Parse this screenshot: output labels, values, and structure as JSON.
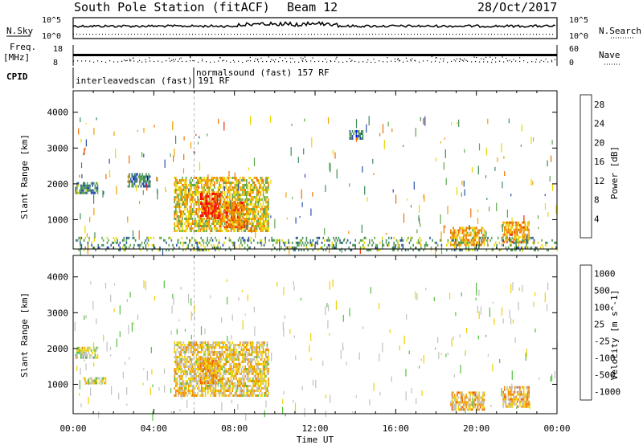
{
  "header": {
    "station": "South Pole Station (fitACF)",
    "beam": "Beam 12",
    "date": "28/Oct/2017"
  },
  "strip_labels": {
    "nsky": "N.Sky",
    "nsky_ticks": [
      "10^5",
      "10^0"
    ],
    "nsearch": "N.Search",
    "nsearch_ticks": [
      "10^5",
      "10^0"
    ],
    "freq": "Freq.",
    "freq_unit": "[MHz]",
    "freq_ticks": [
      "18",
      "8"
    ],
    "nave": "Nave",
    "nave_ticks": [
      "60",
      "0"
    ],
    "cpid": "CPID",
    "cpid_segments": [
      {
        "label": "interleavedscan (fast) 191 RF",
        "start_hour": 0
      },
      {
        "label": "normalsound (fast) 157 RF",
        "start_hour": 6
      }
    ]
  },
  "colors": {
    "power_scale": [
      "#0000ff",
      "#2a4fa8",
      "#3f8c5a",
      "#5ea84a",
      "#e8d800",
      "#f0a000",
      "#f07000",
      "#e83000",
      "#ff0000"
    ],
    "velocity_scale": [
      "#2040c0",
      "#3068c8",
      "#2e8a4a",
      "#54c040",
      "#c0c0c0",
      "#f0d000",
      "#f09000",
      "#f06000",
      "#ff0000"
    ]
  },
  "chart_data": [
    {
      "type": "heatmap",
      "title": "",
      "xlabel": "",
      "ylabel": "Slant Range [km]",
      "x_range_hours": [
        0,
        24
      ],
      "xticks": [
        "00:00",
        "04:00",
        "08:00",
        "12:00",
        "16:00",
        "20:00",
        "00:00"
      ],
      "ylim": [
        180,
        4600
      ],
      "yticks": [
        "1000",
        "2000",
        "3000",
        "4000"
      ],
      "colorbar": {
        "label": "Power [dB]",
        "ticks": [
          "4",
          "8",
          "12",
          "16",
          "20",
          "24",
          "28"
        ],
        "range": [
          0,
          30
        ]
      },
      "regions": [
        {
          "t0": 0.1,
          "t1": 1.2,
          "r0": 1750,
          "r1": 2050,
          "value": 9
        },
        {
          "t0": 2.7,
          "t1": 3.8,
          "r0": 1900,
          "r1": 2300,
          "value": 8
        },
        {
          "t0": 5.0,
          "t1": 9.7,
          "r0": 700,
          "r1": 2200,
          "value": 16
        },
        {
          "t0": 6.3,
          "t1": 7.3,
          "r0": 1050,
          "r1": 1750,
          "value": 26
        },
        {
          "t0": 7.5,
          "t1": 8.5,
          "r0": 800,
          "r1": 1500,
          "value": 22
        },
        {
          "t0": 13.7,
          "t1": 14.4,
          "r0": 3250,
          "r1": 3500,
          "value": 8
        },
        {
          "t0": 18.7,
          "t1": 20.4,
          "r0": 300,
          "r1": 800,
          "value": 18
        },
        {
          "t0": 21.3,
          "t1": 22.6,
          "r0": 350,
          "r1": 950,
          "value": 19
        },
        {
          "t0": 0.0,
          "t1": 24.0,
          "r0": 180,
          "r1": 520,
          "value": 10
        }
      ]
    },
    {
      "type": "heatmap",
      "title": "",
      "xlabel": "Time UT",
      "ylabel": "Slant Range [km]",
      "x_range_hours": [
        0,
        24
      ],
      "xticks": [
        "00:00",
        "04:00",
        "08:00",
        "12:00",
        "16:00",
        "20:00",
        "00:00"
      ],
      "ylim": [
        180,
        4600
      ],
      "yticks": [
        "1000",
        "2000",
        "3000",
        "4000"
      ],
      "colorbar": {
        "label": "Velocity [m s^-1]",
        "ticks": [
          "1000",
          "500",
          "100",
          "25",
          "-25",
          "-100",
          "-500",
          "-1000"
        ],
        "range": [
          -1000,
          1000
        ]
      },
      "regions": [
        {
          "t0": 0.1,
          "t1": 1.2,
          "r0": 1750,
          "r1": 2050,
          "value": 0
        },
        {
          "t0": 0.5,
          "t1": 1.6,
          "r0": 1000,
          "r1": 1200,
          "value": -150
        },
        {
          "t0": 5.0,
          "t1": 9.7,
          "r0": 700,
          "r1": 2200,
          "value": -200
        },
        {
          "t0": 6.3,
          "t1": 7.3,
          "r0": 1050,
          "r1": 1750,
          "value": -350
        },
        {
          "t0": 18.7,
          "t1": 20.4,
          "r0": 300,
          "r1": 800,
          "value": -300
        },
        {
          "t0": 21.3,
          "t1": 22.6,
          "r0": 350,
          "r1": 950,
          "value": -300
        }
      ]
    }
  ]
}
